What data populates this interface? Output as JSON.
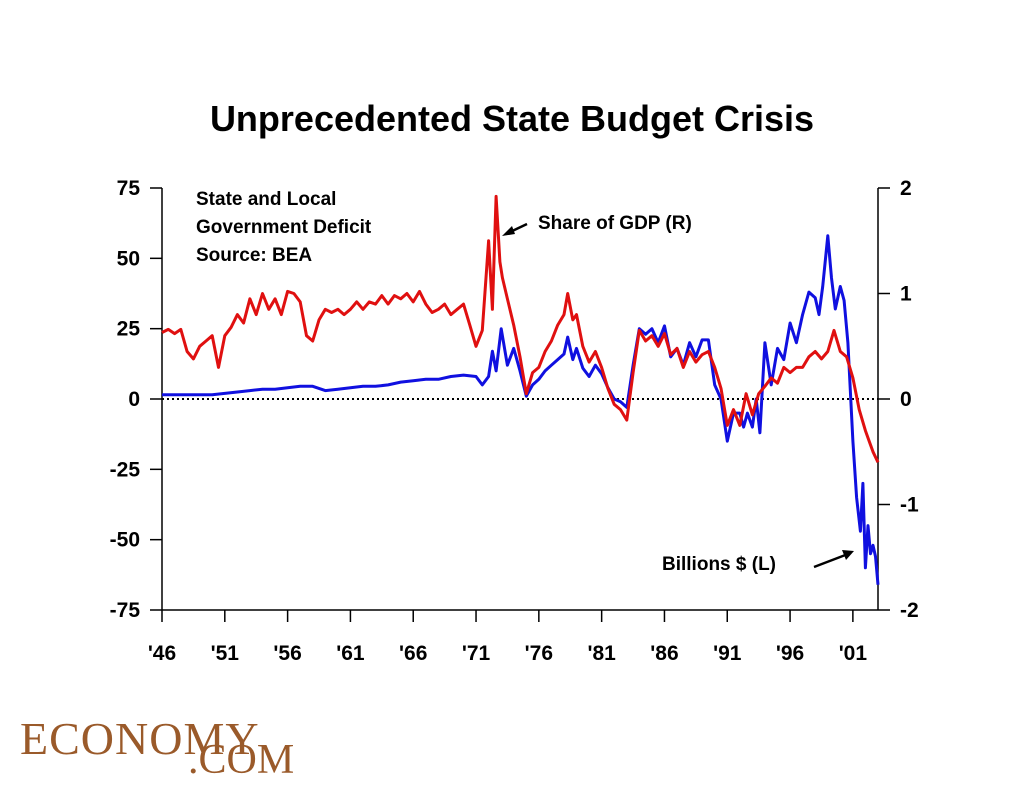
{
  "chart_data": {
    "type": "line",
    "title": "Unprecedented State Budget Crisis",
    "annotations": {
      "info_lines": [
        "State and Local",
        "Government Deficit",
        "Source: BEA"
      ],
      "share_label": "Share of GDP (R)",
      "billions_label": "Billions $ (L)"
    },
    "x_ticks": [
      "'46",
      "'51",
      "'56",
      "'61",
      "'66",
      "'71",
      "'76",
      "'81",
      "'86",
      "'91",
      "'96",
      "'01"
    ],
    "x_tick_years": [
      1946,
      1951,
      1956,
      1961,
      1966,
      1971,
      1976,
      1981,
      1986,
      1991,
      1996,
      2001
    ],
    "xlim": [
      1946,
      2003
    ],
    "y_left": {
      "label": "Billions $",
      "lim": [
        -75,
        75
      ],
      "ticks": [
        "75",
        "50",
        "25",
        "0",
        "-25",
        "-50",
        "-75"
      ],
      "tick_values": [
        75,
        50,
        25,
        0,
        -25,
        -50,
        -75
      ]
    },
    "y_right": {
      "label": "Share of GDP",
      "lim": [
        -2,
        2
      ],
      "ticks": [
        "2",
        "1",
        "0",
        "-1",
        "-2"
      ],
      "tick_values": [
        2,
        1,
        0,
        -1,
        -2
      ]
    },
    "zero_line": "dotted",
    "series": [
      {
        "name": "Billions $ (L)",
        "axis": "left",
        "color": "#1010e0",
        "x": [
          1946,
          1947,
          1948,
          1949,
          1950,
          1951,
          1952,
          1953,
          1954,
          1955,
          1956,
          1957,
          1958,
          1959,
          1960,
          1961,
          1962,
          1963,
          1964,
          1965,
          1966,
          1967,
          1968,
          1969,
          1970,
          1971,
          1971.5,
          1972,
          1972.3,
          1972.6,
          1973,
          1973.5,
          1974,
          1974.5,
          1975,
          1975.5,
          1976,
          1976.5,
          1977,
          1977.5,
          1978,
          1978.3,
          1978.7,
          1979,
          1979.5,
          1980,
          1980.5,
          1981,
          1981.5,
          1982,
          1982.5,
          1983,
          1983.5,
          1984,
          1984.5,
          1985,
          1985.5,
          1986,
          1986.5,
          1987,
          1987.5,
          1988,
          1988.5,
          1989,
          1989.5,
          1990,
          1990.5,
          1991,
          1991.5,
          1992,
          1992.3,
          1992.6,
          1993,
          1993.3,
          1993.6,
          1994,
          1994.5,
          1995,
          1995.5,
          1996,
          1996.5,
          1997,
          1997.5,
          1998,
          1998.3,
          1998.6,
          1999,
          1999.3,
          1999.6,
          2000,
          2000.3,
          2000.6,
          2001,
          2001.3,
          2001.6,
          2001.8,
          2002,
          2002.2,
          2002.4,
          2002.6,
          2002.8,
          2003
        ],
        "values": [
          1.5,
          1.5,
          1.5,
          1.5,
          1.5,
          2,
          2.5,
          3,
          3.5,
          3.5,
          4,
          4.5,
          4.5,
          3,
          3.5,
          4,
          4.5,
          4.5,
          5,
          6,
          6.5,
          7,
          7,
          8,
          8.5,
          8,
          5,
          8,
          17,
          10,
          25,
          12,
          18,
          10,
          1,
          5,
          7,
          10,
          12,
          14,
          16,
          22,
          14,
          18,
          11,
          8,
          12,
          9,
          4,
          0,
          -1,
          -3,
          12,
          25,
          23,
          25,
          20,
          26,
          15,
          18,
          12,
          20,
          15,
          21,
          21,
          5,
          0,
          -15,
          -5,
          -5,
          -10,
          -5,
          -10,
          0,
          -12,
          20,
          5,
          18,
          14,
          27,
          20,
          30,
          38,
          36,
          30,
          40,
          58,
          43,
          32,
          40,
          35,
          20,
          -15,
          -35,
          -47,
          -30,
          -60,
          -45,
          -55,
          -52,
          -56,
          -66
        ]
      },
      {
        "name": "Share of GDP (R)",
        "axis": "right",
        "color": "#e01010",
        "x": [
          1946,
          1946.5,
          1947,
          1947.5,
          1948,
          1948.5,
          1949,
          1949.5,
          1950,
          1950.5,
          1951,
          1951.5,
          1952,
          1952.5,
          1953,
          1953.5,
          1954,
          1954.5,
          1955,
          1955.5,
          1956,
          1956.5,
          1957,
          1957.5,
          1958,
          1958.5,
          1959,
          1959.5,
          1960,
          1960.5,
          1961,
          1961.5,
          1962,
          1962.5,
          1963,
          1963.5,
          1964,
          1964.5,
          1965,
          1965.5,
          1966,
          1966.5,
          1967,
          1967.5,
          1968,
          1968.5,
          1969,
          1969.5,
          1970,
          1970.5,
          1971,
          1971.5,
          1972,
          1972.3,
          1972.6,
          1972.9,
          1973.1,
          1973.5,
          1974,
          1974.5,
          1975,
          1975.5,
          1976,
          1976.5,
          1977,
          1977.5,
          1978,
          1978.3,
          1978.7,
          1979,
          1979.5,
          1980,
          1980.5,
          1981,
          1981.5,
          1982,
          1982.5,
          1983,
          1983.5,
          1984,
          1984.5,
          1985,
          1985.5,
          1986,
          1986.5,
          1987,
          1987.5,
          1988,
          1988.5,
          1989,
          1989.5,
          1990,
          1990.5,
          1991,
          1991.5,
          1992,
          1992.5,
          1993,
          1993.5,
          1994,
          1994.5,
          1995,
          1995.5,
          1996,
          1996.5,
          1997,
          1997.5,
          1998,
          1998.5,
          1999,
          1999.5,
          2000,
          2000.5,
          2001,
          2001.5,
          2002,
          2002.3,
          2002.6,
          2003
        ],
        "values": [
          0.63,
          0.66,
          0.62,
          0.66,
          0.45,
          0.38,
          0.5,
          0.55,
          0.6,
          0.3,
          0.6,
          0.68,
          0.8,
          0.72,
          0.95,
          0.8,
          1.0,
          0.85,
          0.95,
          0.8,
          1.02,
          1.0,
          0.92,
          0.6,
          0.55,
          0.75,
          0.85,
          0.82,
          0.85,
          0.8,
          0.85,
          0.92,
          0.85,
          0.92,
          0.9,
          0.98,
          0.9,
          0.98,
          0.95,
          1.0,
          0.92,
          1.02,
          0.9,
          0.82,
          0.85,
          0.9,
          0.8,
          0.85,
          0.9,
          0.7,
          0.5,
          0.65,
          1.5,
          0.85,
          1.92,
          1.3,
          1.15,
          0.95,
          0.7,
          0.4,
          0.05,
          0.25,
          0.3,
          0.45,
          0.55,
          0.7,
          0.8,
          1.0,
          0.75,
          0.8,
          0.5,
          0.35,
          0.45,
          0.3,
          0.1,
          -0.05,
          -0.1,
          -0.2,
          0.25,
          0.65,
          0.55,
          0.6,
          0.5,
          0.62,
          0.42,
          0.48,
          0.3,
          0.45,
          0.35,
          0.42,
          0.45,
          0.3,
          0.1,
          -0.25,
          -0.1,
          -0.25,
          0.05,
          -0.15,
          0.05,
          0.12,
          0.2,
          0.15,
          0.3,
          0.25,
          0.3,
          0.3,
          0.4,
          0.45,
          0.38,
          0.45,
          0.65,
          0.45,
          0.4,
          0.2,
          -0.1,
          -0.3,
          -0.4,
          -0.5,
          -0.6
        ]
      }
    ]
  },
  "logo": {
    "main": "ECONOMY",
    "sub": ".COM"
  }
}
